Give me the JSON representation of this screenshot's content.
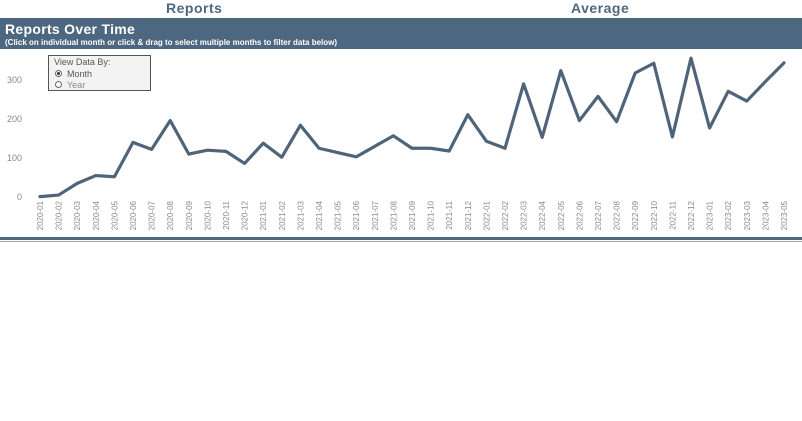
{
  "headers": {
    "reports": "Reports",
    "average": "Average"
  },
  "panel": {
    "title": "Reports Over Time",
    "subtitle": "(Click on individual month or click & drag to select multiple months to filter data below)"
  },
  "toggle": {
    "title": "View Data By:",
    "options": [
      {
        "label": "Month",
        "checked": true
      },
      {
        "label": "Year",
        "checked": false
      }
    ]
  },
  "colors": {
    "accent": "#4d6781",
    "line": "#4f6479",
    "header_text": "#4e6880"
  },
  "chart_data": {
    "type": "line",
    "title": "Reports Over Time",
    "xlabel": "",
    "ylabel": "",
    "ylim": [
      0,
      350
    ],
    "yticks": [
      0,
      100,
      200,
      300
    ],
    "x": [
      "2020-01",
      "2020-02",
      "2020-03",
      "2020-04",
      "2020-05",
      "2020-06",
      "2020-07",
      "2020-08",
      "2020-09",
      "2020-10",
      "2020-11",
      "2020-12",
      "2021-01",
      "2021-02",
      "2021-03",
      "2021-04",
      "2021-05",
      "2021-06",
      "2021-07",
      "2021-08",
      "2021-09",
      "2021-10",
      "2021-11",
      "2021-12",
      "2022-01",
      "2022-02",
      "2022-03",
      "2022-04",
      "2022-05",
      "2022-06",
      "2022-07",
      "2022-08",
      "2022-09",
      "2022-10",
      "2022-11",
      "2022-12",
      "2023-01",
      "2023-02",
      "2023-03",
      "2023-04",
      "2023-05"
    ],
    "series": [
      {
        "name": "Reports",
        "values": [
          1,
          5,
          35,
          55,
          52,
          140,
          122,
          196,
          110,
          120,
          117,
          86,
          138,
          102,
          184,
          125,
          114,
          103,
          130,
          157,
          125,
          125,
          118,
          211,
          143,
          125,
          290,
          153,
          324,
          196,
          258,
          193,
          318,
          343,
          154,
          356,
          177,
          271,
          246,
          296,
          344
        ]
      }
    ],
    "grid": false,
    "legend": "none"
  }
}
